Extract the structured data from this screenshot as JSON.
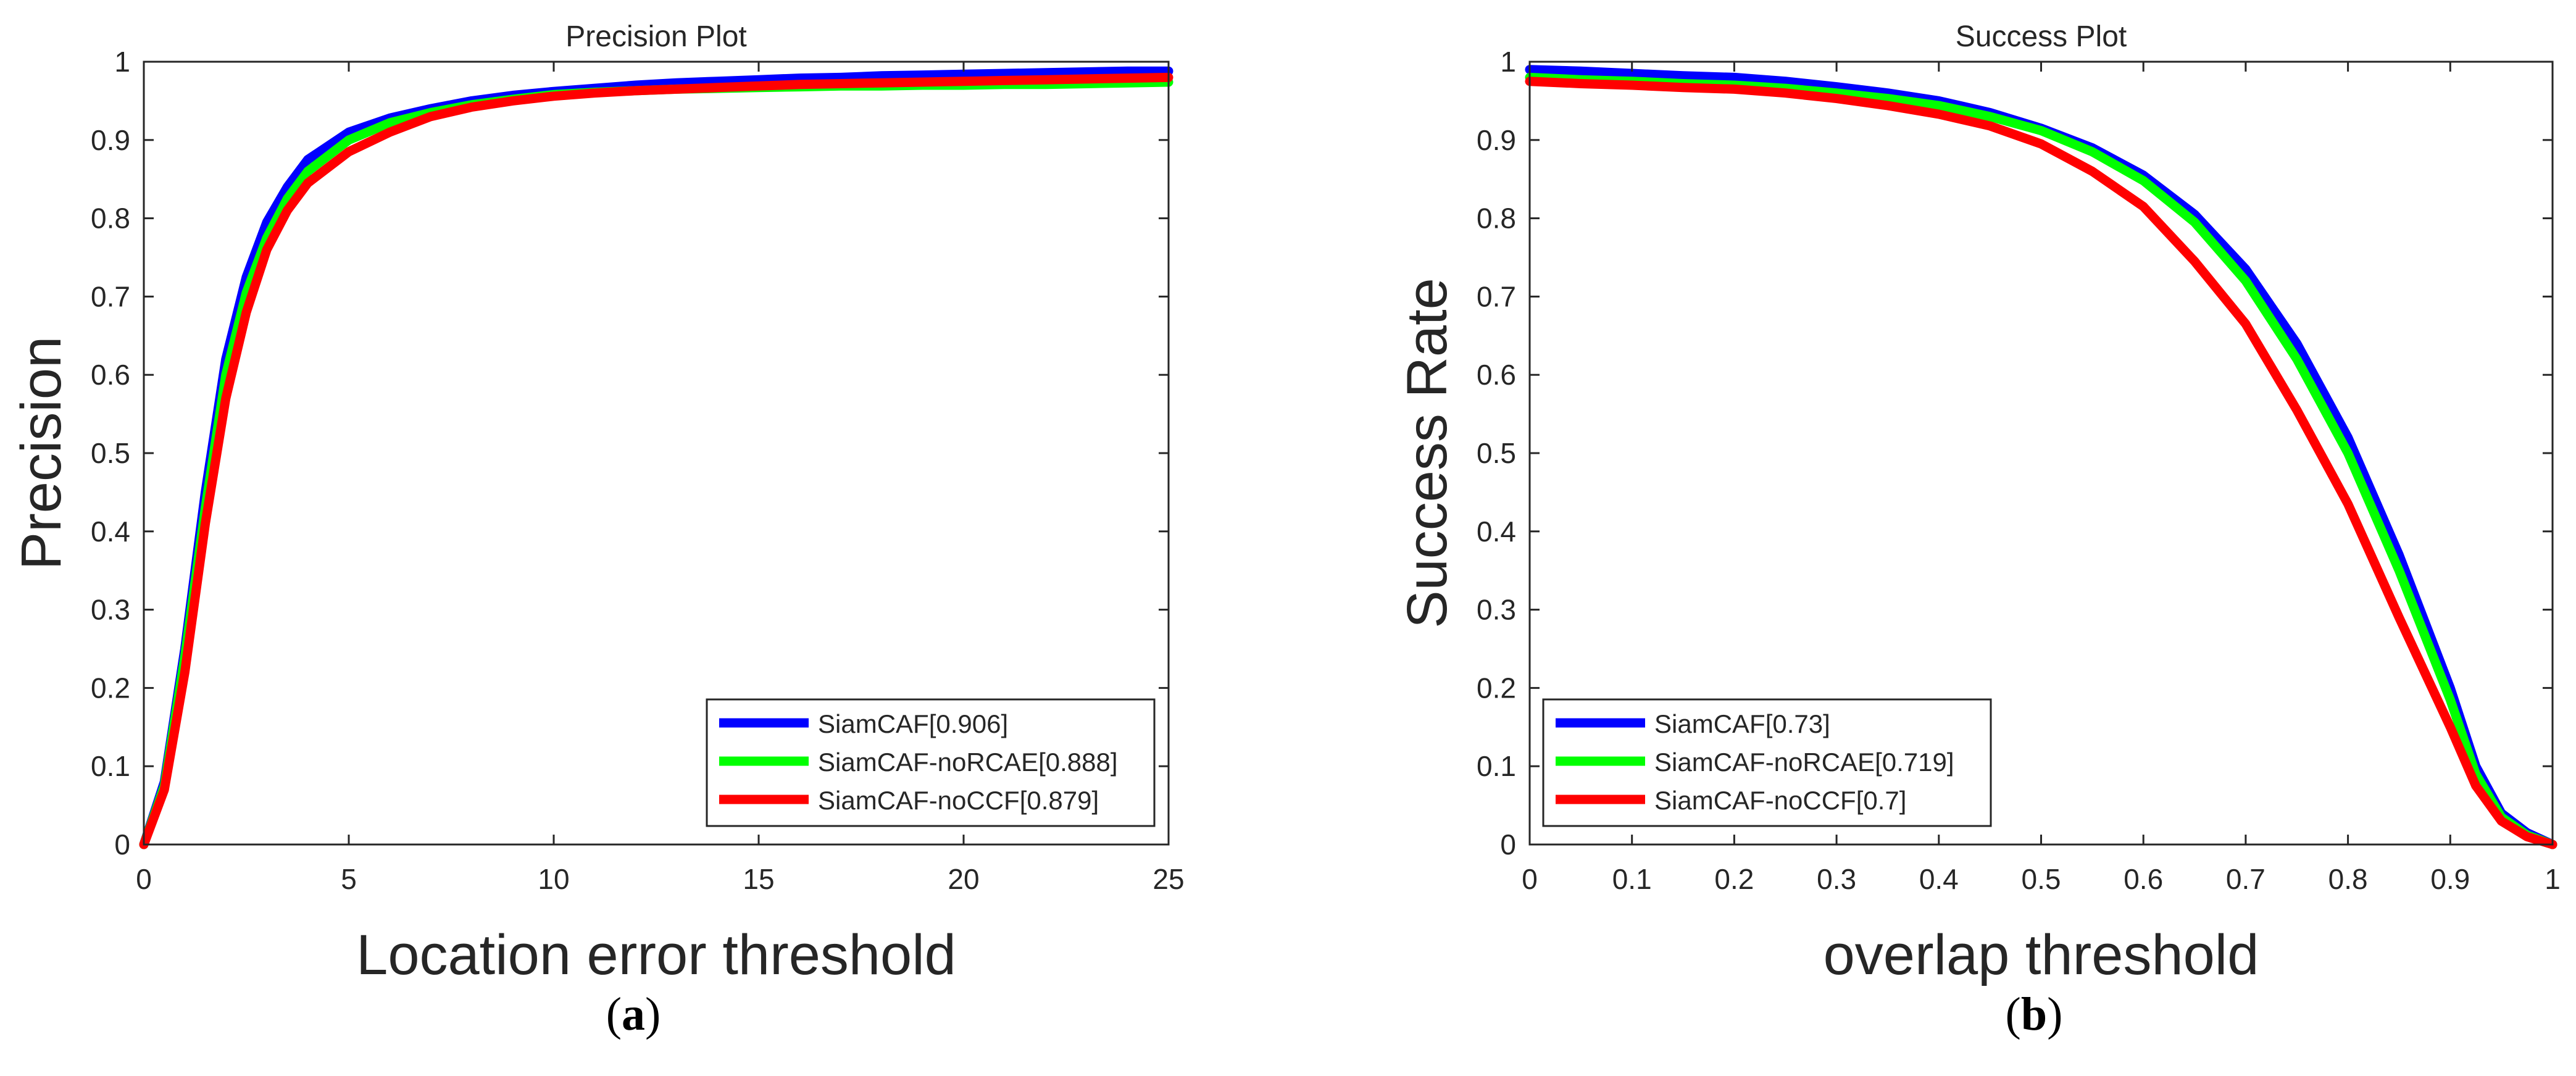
{
  "colors": {
    "series": [
      "#0000ff",
      "#00ff00",
      "#ff0000"
    ],
    "axis": "#262626",
    "background": "#ffffff"
  },
  "captions": {
    "a": {
      "open": "(",
      "letter": "a",
      "close": ")"
    },
    "b": {
      "open": "(",
      "letter": "b",
      "close": ")"
    }
  },
  "chart_data": [
    {
      "type": "line",
      "title": "Precision Plot",
      "xlabel": "Location error threshold",
      "ylabel": "Precision",
      "xlim": [
        0,
        25
      ],
      "ylim": [
        0,
        1
      ],
      "xticks": [
        0,
        5,
        10,
        15,
        20,
        25
      ],
      "xtick_labels": [
        "0",
        "5",
        "10",
        "15",
        "20",
        "25"
      ],
      "yticks": [
        0,
        0.1,
        0.2,
        0.3,
        0.4,
        0.5,
        0.6,
        0.7,
        0.8,
        0.9,
        1
      ],
      "ytick_labels": [
        "0",
        "0.1",
        "0.2",
        "0.3",
        "0.4",
        "0.5",
        "0.6",
        "0.7",
        "0.8",
        "0.9",
        "1"
      ],
      "grid": false,
      "legend_position": "bottom-right",
      "x": [
        0,
        0.5,
        1,
        1.5,
        2,
        2.5,
        3,
        3.5,
        4,
        5,
        6,
        7,
        8,
        9,
        10,
        11,
        12,
        13,
        14,
        15,
        16,
        17,
        18,
        19,
        20,
        21,
        22,
        23,
        24,
        25
      ],
      "series": [
        {
          "name": "SiamCAF[0.906]",
          "values": [
            0,
            0.08,
            0.25,
            0.45,
            0.62,
            0.725,
            0.795,
            0.84,
            0.875,
            0.91,
            0.928,
            0.94,
            0.95,
            0.957,
            0.962,
            0.966,
            0.97,
            0.973,
            0.975,
            0.977,
            0.979,
            0.98,
            0.982,
            0.983,
            0.984,
            0.985,
            0.986,
            0.987,
            0.988,
            0.988
          ]
        },
        {
          "name": "SiamCAF-noRCAE[0.888]",
          "values": [
            0,
            0.075,
            0.24,
            0.43,
            0.6,
            0.705,
            0.775,
            0.825,
            0.86,
            0.9,
            0.922,
            0.935,
            0.945,
            0.952,
            0.958,
            0.961,
            0.963,
            0.965,
            0.966,
            0.967,
            0.968,
            0.969,
            0.969,
            0.97,
            0.97,
            0.971,
            0.971,
            0.972,
            0.973,
            0.974
          ]
        },
        {
          "name": "SiamCAF-noCCF[0.879]",
          "values": [
            0,
            0.07,
            0.22,
            0.41,
            0.57,
            0.68,
            0.76,
            0.81,
            0.845,
            0.885,
            0.91,
            0.93,
            0.942,
            0.95,
            0.956,
            0.96,
            0.963,
            0.965,
            0.967,
            0.969,
            0.971,
            0.972,
            0.973,
            0.974,
            0.975,
            0.976,
            0.977,
            0.978,
            0.979,
            0.98
          ]
        }
      ]
    },
    {
      "type": "line",
      "title": "Success Plot",
      "xlabel": "overlap threshold",
      "ylabel": "Success Rate",
      "xlim": [
        0,
        1
      ],
      "ylim": [
        0,
        1
      ],
      "xticks": [
        0,
        0.1,
        0.2,
        0.3,
        0.4,
        0.5,
        0.6,
        0.7,
        0.8,
        0.9,
        1
      ],
      "xtick_labels": [
        "0",
        "0.1",
        "0.2",
        "0.3",
        "0.4",
        "0.5",
        "0.6",
        "0.7",
        "0.8",
        "0.9",
        "1"
      ],
      "yticks": [
        0,
        0.1,
        0.2,
        0.3,
        0.4,
        0.5,
        0.6,
        0.7,
        0.8,
        0.9,
        1
      ],
      "ytick_labels": [
        "0",
        "0.1",
        "0.2",
        "0.3",
        "0.4",
        "0.5",
        "0.6",
        "0.7",
        "0.8",
        "0.9",
        "1"
      ],
      "grid": false,
      "legend_position": "bottom-left",
      "x": [
        0,
        0.05,
        0.1,
        0.15,
        0.2,
        0.25,
        0.3,
        0.35,
        0.4,
        0.45,
        0.5,
        0.55,
        0.6,
        0.65,
        0.7,
        0.75,
        0.8,
        0.85,
        0.9,
        0.925,
        0.95,
        0.975,
        1
      ],
      "series": [
        {
          "name": "SiamCAF[0.73]",
          "values": [
            0.99,
            0.988,
            0.985,
            0.982,
            0.98,
            0.975,
            0.968,
            0.96,
            0.95,
            0.935,
            0.915,
            0.89,
            0.855,
            0.805,
            0.735,
            0.64,
            0.52,
            0.37,
            0.2,
            0.1,
            0.04,
            0.015,
            0
          ]
        },
        {
          "name": "SiamCAF-noRCAE[0.719]",
          "values": [
            0.98,
            0.977,
            0.975,
            0.972,
            0.97,
            0.966,
            0.96,
            0.953,
            0.944,
            0.93,
            0.912,
            0.885,
            0.848,
            0.795,
            0.72,
            0.62,
            0.5,
            0.35,
            0.185,
            0.09,
            0.035,
            0.012,
            0
          ]
        },
        {
          "name": "SiamCAF-noCCF[0.7]",
          "values": [
            0.975,
            0.972,
            0.97,
            0.967,
            0.965,
            0.96,
            0.953,
            0.944,
            0.933,
            0.918,
            0.895,
            0.86,
            0.815,
            0.745,
            0.665,
            0.555,
            0.435,
            0.29,
            0.15,
            0.075,
            0.03,
            0.01,
            0
          ]
        }
      ]
    }
  ]
}
